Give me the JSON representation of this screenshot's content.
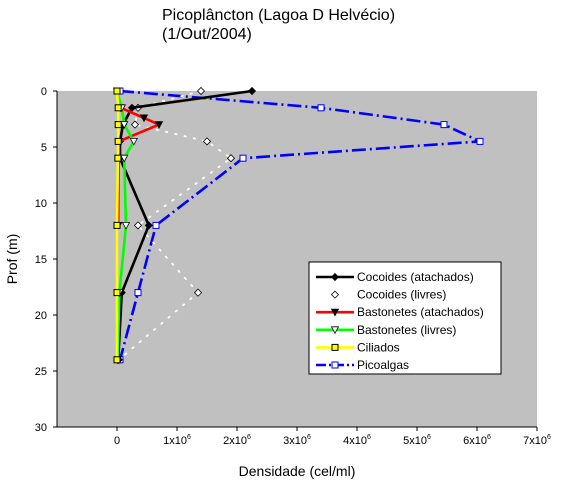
{
  "chart_data": {
    "type": "line",
    "title": "Picoplâncton (Lagoa D Helvécio)",
    "subtitle": "(1/Out/2004)",
    "xlabel": "Densidade (cel/ml)",
    "ylabel": "Prof (m)",
    "xlim": [
      -1000000,
      7000000
    ],
    "ylim": [
      0,
      30
    ],
    "y_inverted": true,
    "x_ticks": [
      {
        "value": 0,
        "label": "0",
        "exp": ""
      },
      {
        "value": 1000000,
        "label": "1x10",
        "exp": "6"
      },
      {
        "value": 2000000,
        "label": "2x10",
        "exp": "6"
      },
      {
        "value": 3000000,
        "label": "3x10",
        "exp": "6"
      },
      {
        "value": 4000000,
        "label": "4x10",
        "exp": "6"
      },
      {
        "value": 5000000,
        "label": "5x10",
        "exp": "6"
      },
      {
        "value": 6000000,
        "label": "6x10",
        "exp": "6"
      },
      {
        "value": 7000000,
        "label": "7x10",
        "exp": "6"
      }
    ],
    "y_ticks": [
      {
        "value": 0,
        "label": "0"
      },
      {
        "value": 5,
        "label": "5"
      },
      {
        "value": 10,
        "label": "10"
      },
      {
        "value": 15,
        "label": "15"
      },
      {
        "value": 20,
        "label": "20"
      },
      {
        "value": 25,
        "label": "25"
      },
      {
        "value": 30,
        "label": "30"
      }
    ],
    "grid": false,
    "plot_background": "#c0c0c0",
    "legend_position": "bottom-right",
    "series": [
      {
        "name": "Picoalgas",
        "color": "#0000ff",
        "line": "dashdot",
        "marker": "square-open",
        "points": [
          [
            50000,
            0
          ],
          [
            3400000,
            1.5
          ],
          [
            5450000,
            3
          ],
          [
            6050000,
            4.5
          ],
          [
            2100000,
            6
          ],
          [
            650000,
            12
          ],
          [
            350000,
            18
          ],
          [
            50000,
            24
          ]
        ]
      },
      {
        "name": "Cocoides (livres)",
        "color": "#ffffff",
        "line": "dotted",
        "marker": "diamond-open",
        "points": [
          [
            1400000,
            0
          ],
          [
            350000,
            1.5
          ],
          [
            300000,
            3
          ],
          [
            1500000,
            4.5
          ],
          [
            1900000,
            6
          ],
          [
            350000,
            12
          ],
          [
            1350000,
            18
          ],
          [
            30000,
            24
          ]
        ]
      },
      {
        "name": "Cocoides (atachados)",
        "color": "#000000",
        "line": "solid",
        "marker": "diamond-filled",
        "points": [
          [
            2250000,
            0
          ],
          [
            250000,
            1.5
          ],
          [
            100000,
            3
          ],
          [
            50000,
            4.5
          ],
          [
            50000,
            6
          ],
          [
            530000,
            12
          ],
          [
            80000,
            18
          ],
          [
            20000,
            24
          ]
        ]
      },
      {
        "name": "Bastonetes (atachados)",
        "color": "#ff0000",
        "line": "solid",
        "marker": "triangle-down-filled",
        "points": [
          [
            60000,
            1.5
          ],
          [
            450000,
            2.4
          ],
          [
            700000,
            3
          ],
          [
            30000,
            4.5
          ],
          [
            30000,
            6
          ],
          [
            20000,
            12
          ]
        ]
      },
      {
        "name": "Bastonetes (livres)",
        "color": "#00ff00",
        "line": "solid",
        "marker": "triangle-down-open",
        "points": [
          [
            0,
            0
          ],
          [
            80000,
            1.5
          ],
          [
            120000,
            3
          ],
          [
            280000,
            4.5
          ],
          [
            120000,
            6
          ],
          [
            150000,
            12
          ],
          [
            40000,
            18
          ],
          [
            10000,
            24
          ]
        ]
      },
      {
        "name": "Ciliados",
        "color": "#ffff00",
        "line": "solid",
        "marker": "square-filled",
        "points": [
          [
            0,
            0
          ],
          [
            20000,
            1.5
          ],
          [
            20000,
            3
          ],
          [
            20000,
            4.5
          ],
          [
            15000,
            6
          ],
          [
            0,
            12
          ],
          [
            0,
            18
          ],
          [
            0,
            24
          ]
        ]
      }
    ],
    "legend_order": [
      "Cocoides (atachados)",
      "Cocoides (livres)",
      "Bastonetes (atachados)",
      "Bastonetes (livres)",
      "Ciliados",
      "Picoalgas"
    ]
  }
}
